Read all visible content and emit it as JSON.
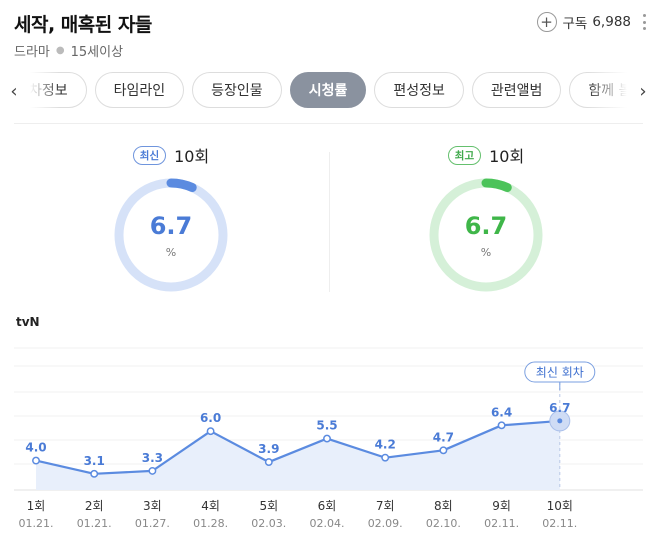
{
  "header": {
    "title": "세작, 매혹된 자들",
    "genre": "드라마",
    "rating": "15세이상",
    "subscribe_label": "구독",
    "subscribe_count": "6,988"
  },
  "tabs": [
    {
      "label": "차정보",
      "active": false
    },
    {
      "label": "타임라인",
      "active": false
    },
    {
      "label": "등장인물",
      "active": false
    },
    {
      "label": "시청률",
      "active": true
    },
    {
      "label": "편성정보",
      "active": false
    },
    {
      "label": "관련앨범",
      "active": false
    },
    {
      "label": "함께 볼",
      "active": false
    }
  ],
  "latest": {
    "badge": "최신",
    "episode": "10회",
    "value": "6.7",
    "unit": "%",
    "fraction": 0.067
  },
  "best": {
    "badge": "최고",
    "episode": "10회",
    "value": "6.7",
    "unit": "%",
    "fraction": 0.067
  },
  "colors": {
    "blue": "#5b8be0",
    "blue_light": "#d6e2f8",
    "green": "#4cc35a",
    "green_light": "#d5f0d8",
    "tab_active": "#8a929f"
  },
  "channel": "tvN",
  "chart_data": {
    "type": "area",
    "categories": [
      "1회",
      "2회",
      "3회",
      "4회",
      "5회",
      "6회",
      "7회",
      "8회",
      "9회",
      "10회"
    ],
    "dates": [
      "01.21.",
      "01.21.",
      "01.27.",
      "01.28.",
      "02.03.",
      "02.04.",
      "02.09.",
      "02.10.",
      "02.11.",
      "02.11."
    ],
    "values": [
      4.0,
      3.1,
      3.3,
      6.0,
      3.9,
      5.5,
      4.2,
      4.7,
      6.4,
      6.7
    ],
    "value_labels": [
      "4.0",
      "3.1",
      "3.3",
      "6.0",
      "3.9",
      "5.5",
      "4.2",
      "4.7",
      "6.4",
      "6.7"
    ],
    "highlight_label": "최신 회차",
    "highlight_index": 9,
    "grid": true
  }
}
